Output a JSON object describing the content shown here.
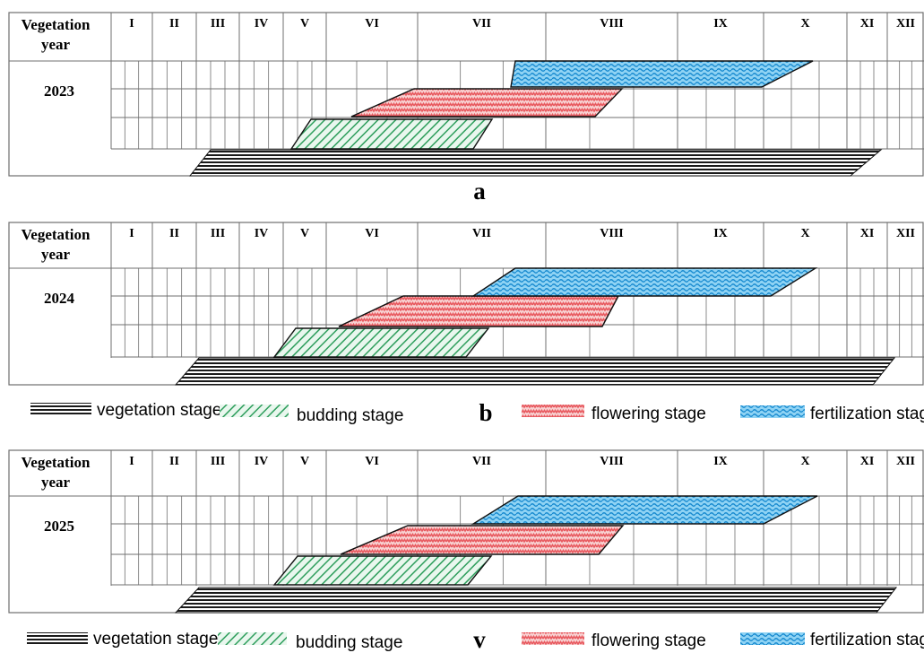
{
  "header": {
    "vegetation": "Vegetation",
    "year": "year"
  },
  "months": [
    "I",
    "II",
    "III",
    "IV",
    "V",
    "VI",
    "VII",
    "VIII",
    "IX",
    "X",
    "XI",
    "XII"
  ],
  "panels": [
    {
      "year": "2023",
      "label": "a"
    },
    {
      "year": "2024",
      "label": "b"
    },
    {
      "year": "2025",
      "label": "v"
    }
  ],
  "legend": {
    "vegetation": "vegetation stage",
    "budding": "budding stage",
    "flowering": "flowering stage",
    "fertilization": "fertilization stage"
  },
  "colors": {
    "budding": "#2e9e5c",
    "flowering": "#e8595f",
    "fertilization": "#1ea3e6",
    "vegetation": "#000000",
    "grid": "#6f6f6f"
  }
}
